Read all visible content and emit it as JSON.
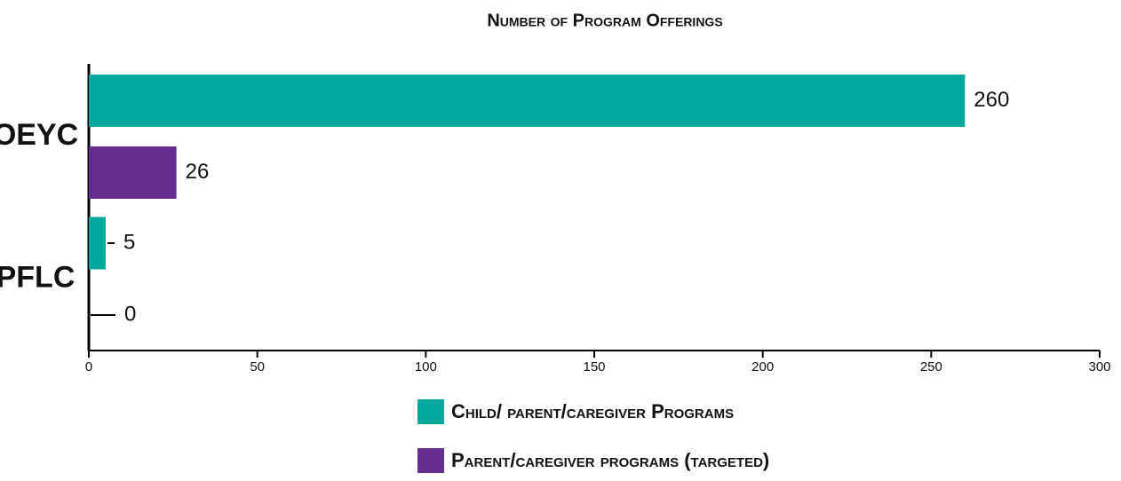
{
  "chart_data": {
    "type": "hbar",
    "title": "Number of Program Offerings",
    "categories": [
      "OEYC",
      "PFLC"
    ],
    "series": [
      {
        "name": "Child/ parent/caregiver Programs",
        "color": "#00a79d",
        "values": [
          260,
          5
        ]
      },
      {
        "name": "Parent/caregiver programs (targeted)",
        "color": "#662d91",
        "values": [
          26,
          0
        ]
      }
    ],
    "xlim": [
      0,
      300
    ],
    "xticks": [
      0,
      50,
      100,
      150,
      200,
      250,
      300
    ]
  }
}
